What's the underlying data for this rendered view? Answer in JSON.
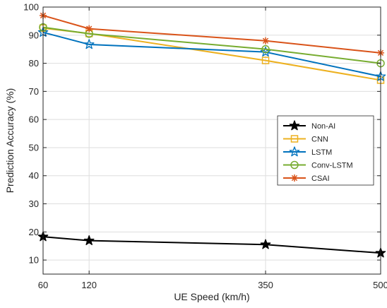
{
  "chart_data": {
    "type": "line",
    "title": "",
    "xlabel": "UE Speed (km/h)",
    "ylabel": "Prediction Accuracy (%)",
    "x": [
      60,
      120,
      350,
      500
    ],
    "xticks": [
      60,
      120,
      350,
      500
    ],
    "xlim": [
      60,
      500
    ],
    "yticks": [
      10,
      20,
      30,
      40,
      50,
      60,
      70,
      80,
      90,
      100
    ],
    "ylim": [
      5,
      100
    ],
    "grid": true,
    "legend_position": "center-right",
    "series": [
      {
        "name": "Non-AI",
        "values": [
          18.3,
          16.9,
          15.5,
          12.5
        ],
        "color": "#000000",
        "marker": "star"
      },
      {
        "name": "CNN",
        "values": [
          92.5,
          90.6,
          81.0,
          74.0
        ],
        "color": "#EDB120",
        "marker": "square"
      },
      {
        "name": "LSTM",
        "values": [
          91.0,
          86.7,
          84.0,
          75.3
        ],
        "color": "#0072BD",
        "marker": "star"
      },
      {
        "name": "Conv-LSTM",
        "values": [
          92.8,
          90.5,
          85.0,
          80.0
        ],
        "color": "#77AC30",
        "marker": "circle"
      },
      {
        "name": "CSAI",
        "values": [
          97.0,
          92.3,
          88.0,
          83.7
        ],
        "color": "#D95319",
        "marker": "asterisk"
      }
    ]
  }
}
